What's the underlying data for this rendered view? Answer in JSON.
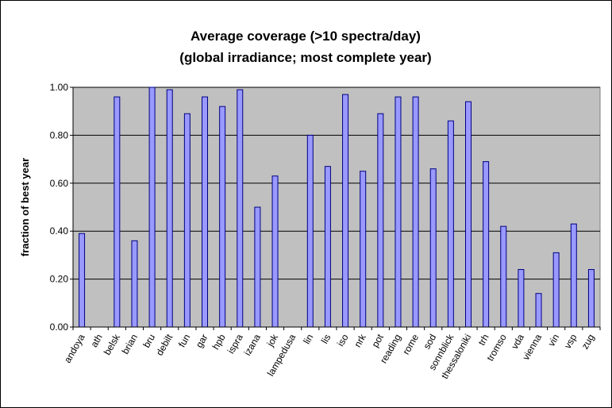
{
  "chart_data": {
    "type": "bar",
    "title": "Average coverage (>10 spectra/day)",
    "subtitle": "(global irradiance; most complete year)",
    "xlabel": "",
    "ylabel": "fraction of best year",
    "ylim": [
      0,
      1.0
    ],
    "y_ticks": [
      "0.00",
      "0.20",
      "0.40",
      "0.60",
      "0.80",
      "1.00"
    ],
    "y_tick_values": [
      0,
      0.2,
      0.4,
      0.6,
      0.8,
      1.0
    ],
    "grid": true,
    "categories": [
      "andoya",
      "ath",
      "belsk",
      "brian",
      "bru",
      "debilt",
      "fun",
      "gar",
      "hpb",
      "ispra",
      "izana",
      "jok",
      "lampedusa",
      "lin",
      "lis",
      "iso",
      "nrk",
      "pot",
      "reading",
      "rome",
      "sod",
      "sonnblick",
      "thessaloniki",
      "trh",
      "tromso",
      "vda",
      "vienna",
      "vin",
      "vsp",
      "zug"
    ],
    "values": [
      0.39,
      0,
      0.96,
      0.36,
      1.0,
      0.99,
      0.89,
      0.96,
      0.92,
      0.99,
      0.5,
      0.63,
      0,
      0.8,
      0.67,
      0.97,
      0.65,
      0.89,
      0.96,
      0.96,
      0.66,
      0.86,
      0.94,
      0.69,
      0.42,
      0.24,
      0.14,
      0.31,
      0.43,
      0.24
    ],
    "colors": {
      "bar_fill": "#9999ff",
      "bar_stroke": "#000080",
      "plot_background": "#c0c0c0",
      "gridline": "#000000"
    }
  }
}
